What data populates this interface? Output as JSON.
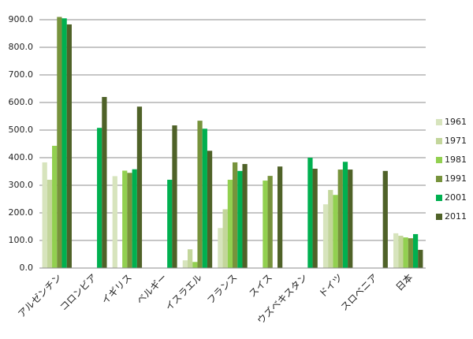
{
  "chart_data": {
    "type": "bar",
    "categories": [
      "アルゼンチン",
      "コロンビア",
      "イギリス",
      "ベルギー",
      "イスラエル",
      "フランス",
      "スイス",
      "ウズベキスタン",
      "ドイツ",
      "スロベニア",
      "日本"
    ],
    "series": [
      {
        "name": "1961",
        "color": "#d7e4bd",
        "values": [
          383,
          null,
          333,
          null,
          28,
          145,
          null,
          null,
          231,
          null,
          126
        ]
      },
      {
        "name": "1971",
        "color": "#c3d69b",
        "values": [
          320,
          null,
          null,
          null,
          68,
          213,
          null,
          null,
          283,
          null,
          117
        ]
      },
      {
        "name": "1981",
        "color": "#92d050",
        "values": [
          443,
          null,
          353,
          null,
          22,
          320,
          317,
          null,
          265,
          null,
          111
        ]
      },
      {
        "name": "1991",
        "color": "#77933c",
        "values": [
          910,
          null,
          345,
          null,
          534,
          383,
          334,
          null,
          357,
          null,
          108
        ]
      },
      {
        "name": "2001",
        "color": "#00b050",
        "values": [
          905,
          508,
          358,
          320,
          505,
          352,
          null,
          400,
          385,
          null,
          123
        ]
      },
      {
        "name": "2011",
        "color": "#4f6228",
        "values": [
          883,
          620,
          585,
          517,
          425,
          377,
          368,
          360,
          357,
          352,
          66
        ]
      }
    ],
    "ylim": [
      0,
      920
    ],
    "yticks": [
      {
        "value": 0,
        "label": "0.0"
      },
      {
        "value": 100,
        "label": "100.0"
      },
      {
        "value": 200,
        "label": "200.0"
      },
      {
        "value": 300,
        "label": "300.0"
      },
      {
        "value": 400,
        "label": "400.0"
      },
      {
        "value": 500,
        "label": "500.0"
      },
      {
        "value": 600,
        "label": "600.0"
      },
      {
        "value": 700,
        "label": "700.0"
      },
      {
        "value": 800,
        "label": "800.0"
      },
      {
        "value": 900,
        "label": "900.0"
      }
    ],
    "grid": true
  }
}
